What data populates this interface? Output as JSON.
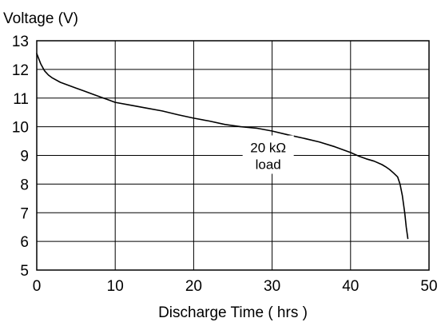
{
  "chart_data": {
    "type": "line",
    "title": "",
    "ylabel": "Voltage (V)",
    "xlabel": "Discharge Time ( hrs )",
    "xlim": [
      0,
      50
    ],
    "ylim": [
      5,
      13
    ],
    "x_ticks": [
      0,
      10,
      20,
      30,
      40,
      50
    ],
    "y_ticks": [
      5,
      6,
      7,
      8,
      9,
      10,
      11,
      12,
      13
    ],
    "grid": true,
    "series": [
      {
        "name": "",
        "x": [
          0,
          0.5,
          1,
          1.5,
          2,
          3,
          4,
          5,
          6,
          7,
          8,
          9,
          10,
          12,
          14,
          16,
          18,
          20,
          22,
          24,
          26,
          28,
          30,
          32,
          34,
          36,
          38,
          40,
          41,
          42,
          43,
          44,
          44.5,
          45,
          45.5,
          46,
          46.3,
          46.6,
          46.9,
          47.1,
          47.3
        ],
        "y": [
          12.55,
          12.2,
          11.95,
          11.8,
          11.7,
          11.55,
          11.45,
          11.35,
          11.25,
          11.15,
          11.05,
          10.95,
          10.85,
          10.75,
          10.65,
          10.55,
          10.42,
          10.3,
          10.2,
          10.08,
          10.0,
          9.95,
          9.85,
          9.72,
          9.6,
          9.47,
          9.3,
          9.1,
          8.98,
          8.88,
          8.8,
          8.68,
          8.6,
          8.5,
          8.38,
          8.25,
          8.0,
          7.6,
          7.0,
          6.5,
          6.1
        ]
      }
    ],
    "annotations": [
      {
        "text_line1": "20 kΩ",
        "text_line2": "load",
        "x": 29.5,
        "y": 9.0
      }
    ],
    "colors": {
      "line": "#000000",
      "grid": "#000000",
      "text": "#000000",
      "annotation_bg": "#ffffff"
    }
  }
}
